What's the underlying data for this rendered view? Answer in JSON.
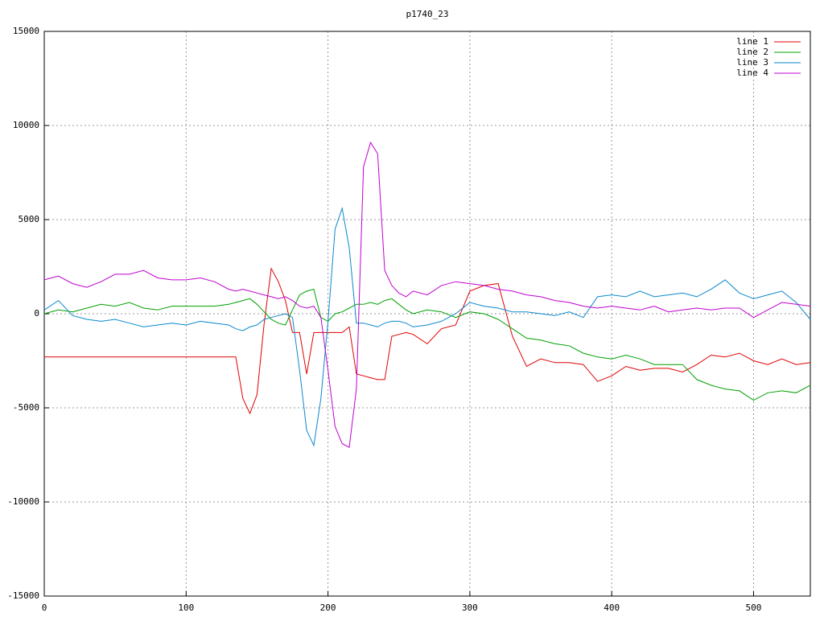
{
  "chart_data": {
    "type": "line",
    "title": "p1740_23",
    "x": [
      0,
      10,
      20,
      30,
      40,
      50,
      60,
      70,
      80,
      90,
      100,
      110,
      120,
      130,
      135,
      140,
      145,
      150,
      155,
      160,
      165,
      170,
      175,
      180,
      185,
      190,
      195,
      200,
      205,
      210,
      215,
      220,
      225,
      230,
      235,
      240,
      245,
      250,
      255,
      260,
      270,
      280,
      290,
      300,
      310,
      320,
      330,
      340,
      350,
      360,
      370,
      380,
      390,
      400,
      410,
      420,
      430,
      440,
      450,
      460,
      470,
      480,
      490,
      500,
      510,
      520,
      530,
      540
    ],
    "series": [
      {
        "name": "line 1",
        "color": "#e00000",
        "values": [
          -2300,
          -2300,
          -2300,
          -2300,
          -2300,
          -2300,
          -2300,
          -2300,
          -2300,
          -2300,
          -2300,
          -2300,
          -2300,
          -2300,
          -2300,
          -4500,
          -5300,
          -4300,
          -500,
          2400,
          1700,
          700,
          -1000,
          -1000,
          -3200,
          -1000,
          -1000,
          -1000,
          -1000,
          -1000,
          -700,
          -3200,
          -3300,
          -3400,
          -3500,
          -3500,
          -1200,
          -1100,
          -1000,
          -1100,
          -1600,
          -800,
          -600,
          1200,
          1500,
          1600,
          -1200,
          -2800,
          -2400,
          -2600,
          -2600,
          -2700,
          -3600,
          -3300,
          -2800,
          -3000,
          -2900,
          -2900,
          -3100,
          -2700,
          -2200,
          -2300,
          -2100,
          -2500,
          -2700,
          -2400,
          -2700,
          -2600
        ]
      },
      {
        "name": "line 2",
        "color": "#00a000",
        "values": [
          0,
          200,
          100,
          300,
          500,
          400,
          600,
          300,
          200,
          400,
          400,
          400,
          400,
          500,
          600,
          700,
          800,
          500,
          100,
          -300,
          -500,
          -600,
          200,
          1000,
          1200,
          1300,
          -200,
          -400,
          0,
          100,
          300,
          500,
          500,
          600,
          500,
          700,
          800,
          500,
          200,
          0,
          200,
          100,
          -200,
          100,
          0,
          -300,
          -800,
          -1300,
          -1400,
          -1600,
          -1700,
          -2100,
          -2300,
          -2400,
          -2200,
          -2400,
          -2700,
          -2700,
          -2700,
          -3500,
          -3800,
          -4000,
          -4100,
          -4600,
          -4200,
          -4100,
          -4200,
          -3800
        ]
      },
      {
        "name": "line 3",
        "color": "#0a88cc",
        "values": [
          200,
          700,
          -100,
          -300,
          -400,
          -300,
          -500,
          -700,
          -600,
          -500,
          -600,
          -400,
          -500,
          -600,
          -800,
          -900,
          -700,
          -600,
          -300,
          -200,
          -100,
          0,
          -200,
          -3000,
          -6200,
          -7000,
          -4500,
          -400,
          4500,
          5600,
          3500,
          -500,
          -500,
          -600,
          -700,
          -500,
          -400,
          -400,
          -500,
          -700,
          -600,
          -400,
          0,
          600,
          400,
          300,
          100,
          100,
          0,
          -100,
          100,
          -200,
          900,
          1000,
          900,
          1200,
          900,
          1000,
          1100,
          900,
          1300,
          1800,
          1100,
          800,
          1000,
          1200,
          600,
          -300
        ]
      },
      {
        "name": "line 4",
        "color": "#c000d0",
        "values": [
          1800,
          2000,
          1600,
          1400,
          1700,
          2100,
          2100,
          2300,
          1900,
          1800,
          1800,
          1900,
          1700,
          1300,
          1200,
          1300,
          1200,
          1100,
          1000,
          900,
          800,
          900,
          700,
          400,
          300,
          400,
          -200,
          -3000,
          -6000,
          -6900,
          -7100,
          -4000,
          7800,
          9100,
          8500,
          2300,
          1500,
          1100,
          900,
          1200,
          1000,
          1500,
          1700,
          1600,
          1500,
          1300,
          1200,
          1000,
          900,
          700,
          600,
          400,
          300,
          400,
          300,
          200,
          400,
          100,
          200,
          300,
          200,
          300,
          300,
          -200,
          200,
          600,
          500,
          400
        ]
      }
    ],
    "xlim": [
      0,
      540
    ],
    "ylim": [
      -15000,
      15000
    ],
    "xticks": [
      0,
      100,
      200,
      300,
      400,
      500
    ],
    "yticks": [
      -15000,
      -10000,
      -5000,
      0,
      5000,
      10000,
      15000
    ],
    "grid": true,
    "legend": "top-right"
  }
}
